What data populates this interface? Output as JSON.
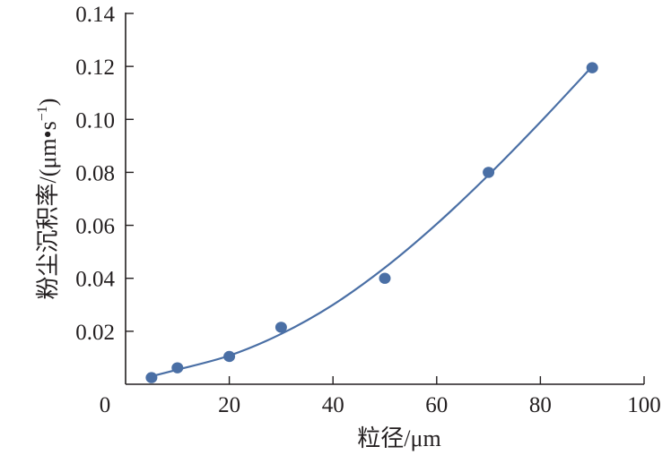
{
  "chart_data": {
    "type": "scatter",
    "title": "",
    "xlabel": "粒径/μm",
    "ylabel": "粉尘沉积率/(μm•s",
    "ylabel_exponent": "−1",
    "ylabel_close": ")",
    "xlim": [
      0,
      100
    ],
    "ylim": [
      0,
      0.14
    ],
    "x_ticks": [
      0,
      20,
      40,
      60,
      80,
      100
    ],
    "x_tick_labels": [
      "0",
      "20",
      "40",
      "60",
      "80",
      "100"
    ],
    "y_ticks": [
      0.02,
      0.04,
      0.06,
      0.08,
      0.1,
      0.12,
      0.14
    ],
    "y_tick_labels": [
      "0.02",
      "0.04",
      "0.06",
      "0.08",
      "0.10",
      "0.12",
      "0.14"
    ],
    "grid": false,
    "legend": "none",
    "series": [
      {
        "type": "scatter",
        "x": [
          5,
          10,
          20,
          30,
          50,
          70,
          90
        ],
        "y": [
          0.0025,
          0.0062,
          0.0105,
          0.0215,
          0.04,
          0.08,
          0.1195
        ],
        "color": "#4a6fa5"
      },
      {
        "type": "line",
        "x": [
          5,
          10,
          20,
          30,
          40,
          50,
          60,
          70,
          80,
          90
        ],
        "y": [
          0.003,
          0.0055,
          0.0108,
          0.019,
          0.03,
          0.044,
          0.0605,
          0.079,
          0.099,
          0.12
        ],
        "color": "#4a6fa5"
      }
    ]
  }
}
